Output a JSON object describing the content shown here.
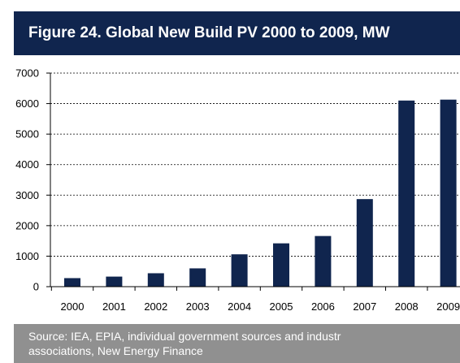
{
  "title": "Figure 24. Global New Build PV 2000 to 2009, MW",
  "source": {
    "line1": "Source: IEA, EPIA, individual government sources and industr",
    "line2": "associations, New Energy Finance"
  },
  "colors": {
    "header": "#10254e",
    "bar": "#10254e",
    "source_bg": "#909090"
  },
  "chart_data": {
    "type": "bar",
    "title": "Figure 24. Global New Build PV 2000 to 2009, MW",
    "xlabel": "",
    "ylabel": "",
    "categories": [
      "2000",
      "2001",
      "2002",
      "2003",
      "2004",
      "2005",
      "2006",
      "2007",
      "2008",
      "2009"
    ],
    "category_labels": [
      "2000",
      "2001",
      "2002",
      "2003",
      "2004",
      "2005",
      "2006",
      "2007",
      "2008",
      "2009"
    ],
    "values": [
      280,
      330,
      440,
      600,
      1060,
      1420,
      1660,
      2870,
      6100,
      6130
    ],
    "ylim": [
      0,
      7000
    ],
    "yticks": [
      0,
      1000,
      2000,
      3000,
      4000,
      5000,
      6000,
      7000
    ],
    "grid": true,
    "grid_style": "dashed",
    "legend": false
  }
}
